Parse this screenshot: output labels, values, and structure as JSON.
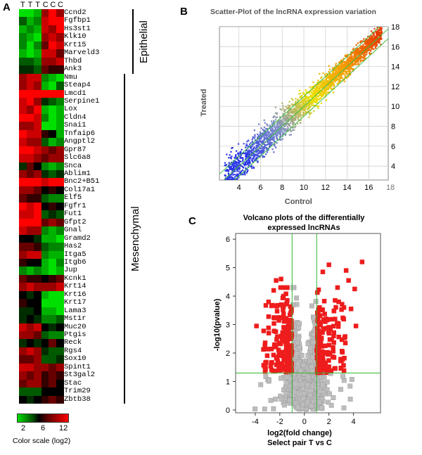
{
  "figure": {
    "panel_labels": [
      "A",
      "B",
      "C"
    ]
  },
  "chart_data": [
    {
      "type": "heatmap",
      "columns": [
        "T",
        "T",
        "T",
        "C",
        "C",
        "C"
      ],
      "rows": [
        "Ccnd2",
        "Fgfbp1",
        "Hs3st1",
        "Klk10",
        "Krt15",
        "Marveld3",
        "Thbd",
        "Ank3",
        "Nmu",
        "Steap4",
        "Lmcd1",
        "Serpine1",
        "Lox",
        "Cldn4",
        "Snai1",
        "Tnfaip6",
        "Angptl2",
        "Gpr87",
        "Slc6a8",
        "Snca",
        "Ablim1",
        "Bnc2+B51",
        "Col17a1",
        "Elf5",
        "Fgfr1",
        "Fut1",
        "Gfpt2",
        "Gnal",
        "Gramd2",
        "Has2",
        "Itga5",
        "Itgb6",
        "Jup",
        "Kcnk1",
        "Krt14",
        "Krt16",
        "Krt17",
        "Lama3",
        "Mst1r",
        "Muc20",
        "Ptgis",
        "Reck",
        "Rgs4",
        "Sox10",
        "Spint1",
        "St3gal2",
        "Stac",
        "Trim29",
        "Zbtb38"
      ],
      "values": [
        [
          1,
          1,
          2,
          9,
          11,
          9
        ],
        [
          4,
          2,
          3,
          10,
          12,
          11
        ],
        [
          2,
          3,
          2,
          10,
          9,
          11
        ],
        [
          3,
          2,
          1,
          9,
          10,
          9
        ],
        [
          3,
          1,
          3,
          8,
          11,
          10
        ],
        [
          2,
          1,
          2,
          10,
          10,
          8
        ],
        [
          4,
          4,
          3,
          9,
          9,
          10
        ],
        [
          5,
          5,
          4,
          8,
          7,
          7
        ],
        [
          9,
          10,
          10,
          3,
          2,
          1
        ],
        [
          9,
          10,
          9,
          2,
          1,
          4
        ],
        [
          12,
          12,
          12,
          11,
          11,
          12
        ],
        [
          10,
          11,
          9,
          5,
          4,
          3
        ],
        [
          10,
          9,
          11,
          2,
          1,
          2
        ],
        [
          11,
          11,
          10,
          3,
          1,
          2
        ],
        [
          9,
          9,
          10,
          1,
          1,
          2
        ],
        [
          11,
          10,
          10,
          7,
          6,
          2
        ],
        [
          10,
          9,
          9,
          4,
          2,
          3
        ],
        [
          11,
          11,
          10,
          9,
          8,
          9
        ],
        [
          10,
          10,
          9,
          8,
          9,
          9
        ],
        [
          5,
          8,
          6,
          3,
          2,
          3
        ],
        [
          9,
          8,
          9,
          5,
          4,
          5
        ],
        [
          12,
          12,
          11,
          10,
          11,
          11
        ],
        [
          9,
          9,
          8,
          6,
          7,
          6
        ],
        [
          8,
          7,
          7,
          4,
          3,
          3
        ],
        [
          11,
          10,
          11,
          6,
          7,
          6
        ],
        [
          10,
          10,
          11,
          4,
          5,
          4
        ],
        [
          12,
          12,
          11,
          8,
          9,
          8
        ],
        [
          10,
          9,
          9,
          3,
          2,
          3
        ],
        [
          6,
          6,
          5,
          2,
          2,
          1
        ],
        [
          8,
          8,
          7,
          4,
          3,
          3
        ],
        [
          9,
          10,
          10,
          3,
          2,
          2
        ],
        [
          7,
          6,
          6,
          2,
          1,
          3
        ],
        [
          3,
          2,
          3,
          2,
          1,
          2
        ],
        [
          8,
          7,
          7,
          6,
          7,
          8
        ],
        [
          9,
          10,
          9,
          9,
          9,
          10
        ],
        [
          6,
          5,
          6,
          2,
          1,
          1
        ],
        [
          7,
          6,
          6,
          1,
          1,
          1
        ],
        [
          5,
          5,
          6,
          2,
          2,
          1
        ],
        [
          5,
          6,
          5,
          3,
          3,
          4
        ],
        [
          10,
          9,
          10,
          6,
          5,
          6
        ],
        [
          9,
          9,
          8,
          4,
          3,
          3
        ],
        [
          5,
          6,
          5,
          6,
          8,
          6
        ],
        [
          9,
          10,
          9,
          5,
          4,
          4
        ],
        [
          8,
          8,
          9,
          4,
          4,
          5
        ],
        [
          10,
          10,
          9,
          9,
          8,
          9
        ],
        [
          9,
          8,
          9,
          7,
          8,
          7
        ],
        [
          8,
          9,
          9,
          7,
          8,
          6
        ],
        [
          4,
          4,
          4,
          6,
          6,
          6
        ],
        [
          6,
          5,
          6,
          7,
          8,
          7
        ]
      ],
      "groups": [
        {
          "name": "Epithelial",
          "from": "Ccnd2",
          "to": "Ank3"
        },
        {
          "name": "Mesenchymal",
          "from": "Nmu",
          "to": "Zbtb38"
        }
      ],
      "color_scale": {
        "ticks": [
          2,
          6,
          12
        ],
        "label": "Color scale (log2)",
        "low_color": "#00e000",
        "mid_color": "#000000",
        "high_color": "#ff0000"
      }
    },
    {
      "type": "scatter",
      "title": "Scatter-Plot of the lncRNA expression variation",
      "xlabel": "Control",
      "ylabel": "Treated",
      "xlim": [
        2.2,
        17.8
      ],
      "ylim": [
        2.6,
        18.0
      ],
      "xticks": [
        4,
        6,
        8,
        10,
        12,
        14,
        16,
        18
      ],
      "yticks": [
        4,
        6,
        8,
        10,
        12,
        14,
        16,
        18
      ],
      "grid": true,
      "reference_lines": {
        "slope": 1,
        "fold_offsets": [
          -1,
          0,
          1
        ]
      },
      "color_gradient": [
        "#2a35e6",
        "#7f8fc9",
        "#ecdf00",
        "#f59a00",
        "#e63b00"
      ],
      "distribution": {
        "xmin": 2.7,
        "xmax": 17.2,
        "spread_low_end": 0.9,
        "spread_high_end": 0.4
      }
    },
    {
      "type": "scatter",
      "title": "Volcano plots of the differentially expressed lncRNAs",
      "xlabel": "log2(fold change)",
      "xlabel2": "Select pair  T vs C",
      "ylabel": "-log10(pvalue)",
      "xlim": [
        -5.6,
        6.2
      ],
      "ylim": [
        -0.1,
        6.2
      ],
      "xticks": [
        -4,
        -2,
        0,
        2,
        4
      ],
      "yticks": [
        0,
        1,
        2,
        3,
        4,
        5,
        6
      ],
      "thresholds": {
        "fold_change_log2": [
          -1,
          1
        ],
        "pvalue_log10": 1.3
      },
      "point_colors": {
        "significant": "#ee1c1c",
        "non_significant": "#bdbdbd"
      },
      "highlighted_points": [
        {
          "x": 4.7,
          "y": 5.2
        },
        {
          "x": 2.0,
          "y": 5.1
        },
        {
          "x": 3.4,
          "y": 4.9
        },
        {
          "x": 1.5,
          "y": 4.85
        },
        {
          "x": -2.3,
          "y": 4.55
        },
        {
          "x": -1.9,
          "y": 4.6
        },
        {
          "x": -2.5,
          "y": 4.2
        },
        {
          "x": 3.6,
          "y": 4.55
        },
        {
          "x": 4.1,
          "y": 4.25
        },
        {
          "x": 2.7,
          "y": 4.3
        },
        {
          "x": -1.7,
          "y": 4.0
        },
        {
          "x": 2.5,
          "y": 3.85
        },
        {
          "x": 3.8,
          "y": 3.55
        },
        {
          "x": -3.9,
          "y": 2.95
        },
        {
          "x": -2.9,
          "y": 2.7
        },
        {
          "x": 4.2,
          "y": 2.95
        }
      ]
    }
  ]
}
